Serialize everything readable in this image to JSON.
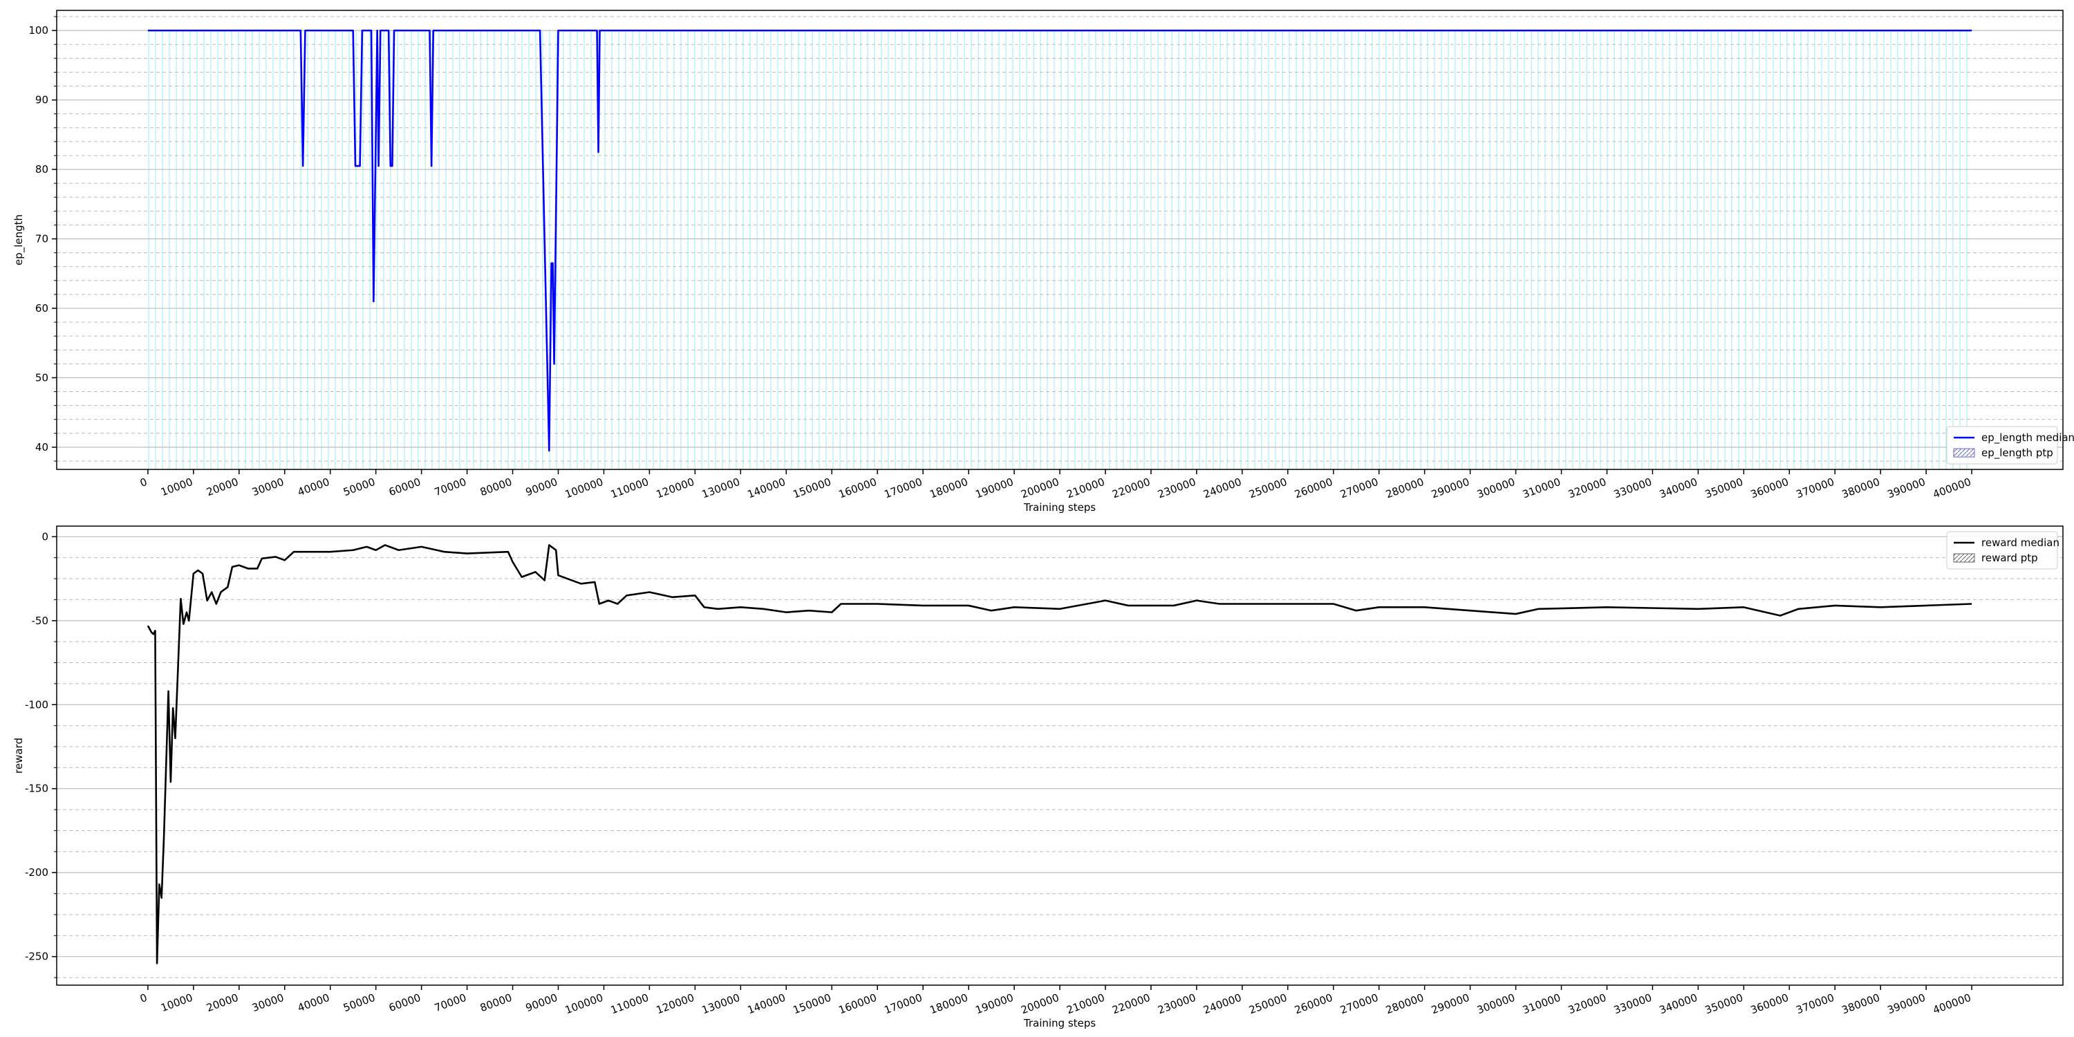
{
  "chart_data": [
    {
      "type": "line",
      "xlabel": "Training steps",
      "ylabel": "ep_length",
      "xlim": [
        -20000,
        420000
      ],
      "ylim": [
        36.8,
        102.9
      ],
      "xticks": [
        0,
        10000,
        20000,
        30000,
        40000,
        50000,
        60000,
        70000,
        80000,
        90000,
        100000,
        110000,
        120000,
        130000,
        140000,
        150000,
        160000,
        170000,
        180000,
        190000,
        200000,
        210000,
        220000,
        230000,
        240000,
        250000,
        260000,
        270000,
        280000,
        290000,
        300000,
        310000,
        320000,
        330000,
        340000,
        350000,
        360000,
        370000,
        380000,
        390000,
        400000
      ],
      "yticks": [
        40,
        50,
        60,
        70,
        80,
        90,
        100
      ],
      "minor_yticks": [
        38,
        42,
        44,
        46,
        48,
        52,
        54,
        56,
        58,
        62,
        64,
        66,
        68,
        72,
        74,
        76,
        78,
        82,
        84,
        86,
        88,
        92,
        94,
        96,
        98,
        102
      ],
      "grid": true,
      "legend_loc": "lower right",
      "series": [
        {
          "name": "ep_length median",
          "color": "#0000ff",
          "x": [
            0,
            33500,
            34000,
            34500,
            45000,
            45500,
            46500,
            47000,
            49000,
            49500,
            50300,
            50600,
            51000,
            52800,
            53200,
            53600,
            54000,
            61800,
            62200,
            62600,
            86000,
            88000,
            88500,
            88800,
            89100,
            90000,
            98500,
            98800,
            99100,
            400000
          ],
          "values": [
            100,
            100,
            80.5,
            100,
            100,
            80.5,
            80.5,
            100,
            100,
            61,
            100,
            80.5,
            100,
            100,
            80.5,
            80.5,
            100,
            100,
            80.5,
            100,
            100,
            39.5,
            66.5,
            66.5,
            52,
            100,
            100,
            82.5,
            100,
            100
          ]
        },
        {
          "name": "ep_length ptp",
          "color": "#00cccc",
          "hatch": true,
          "x": [
            0,
            400000
          ],
          "low": [
            36.8,
            36.8
          ],
          "high": [
            100,
            100
          ]
        }
      ]
    },
    {
      "type": "line",
      "xlabel": "Training steps",
      "ylabel": "reward",
      "xlim": [
        -20000,
        420000
      ],
      "ylim": [
        -267,
        6.3
      ],
      "xticks": [
        0,
        10000,
        20000,
        30000,
        40000,
        50000,
        60000,
        70000,
        80000,
        90000,
        100000,
        110000,
        120000,
        130000,
        140000,
        150000,
        160000,
        170000,
        180000,
        190000,
        200000,
        210000,
        220000,
        230000,
        240000,
        250000,
        260000,
        270000,
        280000,
        290000,
        300000,
        310000,
        320000,
        330000,
        340000,
        350000,
        360000,
        370000,
        380000,
        390000,
        400000
      ],
      "yticks": [
        -250,
        -200,
        -150,
        -100,
        -50,
        0
      ],
      "minor_yticks": [
        -262.5,
        -237.5,
        -225,
        -212.5,
        -187.5,
        -175,
        -162.5,
        -137.5,
        -125,
        -112.5,
        -87.5,
        -75,
        -62.5,
        -37.5,
        -25,
        -12.5
      ],
      "grid": true,
      "legend_loc": "upper right",
      "series": [
        {
          "name": "reward median",
          "color": "#000000",
          "x": [
            0,
            800,
            1200,
            1600,
            2000,
            2500,
            3000,
            3500,
            4500,
            5000,
            5500,
            6000,
            7200,
            7800,
            8500,
            9000,
            10000,
            11000,
            12000,
            13000,
            14000,
            15000,
            16000,
            17500,
            18500,
            20000,
            22000,
            24000,
            25000,
            28000,
            30000,
            32000,
            35000,
            40000,
            45000,
            48000,
            50000,
            52000,
            55000,
            60000,
            65000,
            70000,
            79000,
            80000,
            82000,
            85000,
            87000,
            88000,
            89500,
            90000,
            92000,
            95000,
            98000,
            99000,
            101000,
            103000,
            105000,
            110000,
            115000,
            120000,
            122000,
            125000,
            130000,
            135000,
            140000,
            145000,
            150000,
            152000,
            160000,
            170000,
            180000,
            185000,
            190000,
            200000,
            210000,
            215000,
            225000,
            230000,
            235000,
            250000,
            260000,
            265000,
            270000,
            280000,
            290000,
            300000,
            305000,
            320000,
            340000,
            350000,
            358000,
            362000,
            370000,
            380000,
            390000,
            400000
          ],
          "values": [
            -53,
            -57,
            -58,
            -56,
            -254,
            -207,
            -215,
            -180,
            -92,
            -146,
            -102,
            -120,
            -37,
            -52,
            -45,
            -50,
            -22,
            -20,
            -22,
            -38,
            -33,
            -40,
            -33,
            -30,
            -18,
            -17,
            -19,
            -19,
            -13,
            -12,
            -14,
            -9,
            -9,
            -9,
            -8,
            -6,
            -8,
            -5,
            -8,
            -6,
            -9,
            -10,
            -9,
            -15,
            -24,
            -21,
            -26,
            -5,
            -8,
            -23,
            -25,
            -28,
            -27,
            -40,
            -38,
            -40,
            -35,
            -33,
            -36,
            -35,
            -42,
            -43,
            -42,
            -43,
            -45,
            -44,
            -45,
            -40,
            -40,
            -41,
            -41,
            -44,
            -42,
            -43,
            -38,
            -41,
            -41,
            -38,
            -40,
            -40,
            -40,
            -44,
            -42,
            -42,
            -44,
            -46,
            -43,
            -42,
            -43,
            -42,
            -47,
            -43,
            -41,
            -42,
            -41,
            -40
          ]
        },
        {
          "name": "reward ptp",
          "color": "#666666",
          "hatch": true
        }
      ]
    }
  ]
}
